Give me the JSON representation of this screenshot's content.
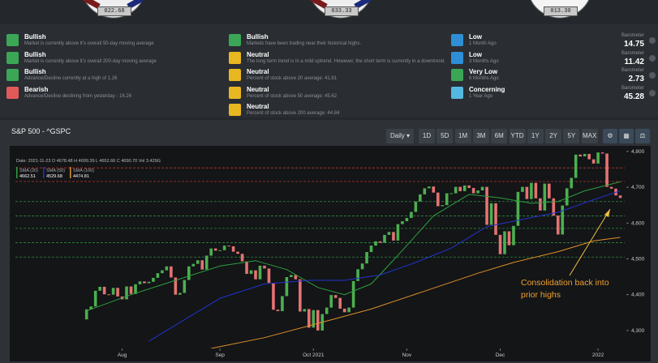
{
  "gauges": [
    "022.68",
    "033.33",
    "013.30"
  ],
  "indicators": [
    [
      {
        "title": "Bullish",
        "text": "Market is currently above it's overall 50-day moving average",
        "tone": "green"
      },
      {
        "title": "Bullish",
        "text": "Market is currently above it's overall 200-day moving average",
        "tone": "green"
      },
      {
        "title": "Bullish",
        "text": "Advance/Decline currently at a high of 1.26",
        "tone": "green"
      },
      {
        "title": "Bearish",
        "text": "Advance/Decline declining from yesterday - 16.26",
        "tone": "red"
      }
    ],
    [
      {
        "title": "Bullish",
        "text": "Markets have been trading near their historical highs.",
        "tone": "green"
      },
      {
        "title": "Neutral",
        "text": "The long term trend is in a mild uptrend. However, the short term is currently in a downtrend.",
        "tone": "yellow"
      },
      {
        "title": "Neutral",
        "text": "Percent of stock above 20 average: 41.81",
        "tone": "yellow"
      },
      {
        "title": "Neutral",
        "text": "Percent of stock above 50 average: 45.62",
        "tone": "yellow"
      },
      {
        "title": "Neutral",
        "text": "Percent of stock above 200 average: 44.84",
        "tone": "yellow"
      }
    ],
    [
      {
        "title": "Low",
        "text": "1 Month Ago",
        "tone": "blue",
        "meter": "Barometer",
        "value": "14.75"
      },
      {
        "title": "Low",
        "text": "3 Months Ago",
        "tone": "blue",
        "meter": "Barometer",
        "value": "11.42"
      },
      {
        "title": "Very Low",
        "text": "6 Months Ago",
        "tone": "green",
        "meter": "Barometer",
        "value": "2.73"
      },
      {
        "title": "Concerning",
        "text": "1 Year Ago",
        "tone": "sky",
        "meter": "Barometer",
        "value": "45.28"
      }
    ]
  ],
  "panel_title": "S&P 500 - ^GSPC",
  "interval": "Daily ▾",
  "ranges": [
    "1D",
    "5D",
    "1M",
    "3M",
    "6M",
    "YTD",
    "1Y",
    "2Y",
    "5Y",
    "MAX"
  ],
  "chart_data": {
    "type": "candlestick",
    "crosshair_info": "Date: 2021-11-23 O 4678.48 H 4699.39 L 4652.66 C 4690.70 Vol 3.429G",
    "x": [
      0,
      1,
      2,
      3,
      4,
      5,
      6,
      7,
      8,
      9,
      10,
      11,
      12,
      13,
      14,
      15,
      16,
      17,
      18,
      19,
      20,
      21,
      22,
      23,
      24,
      25,
      26,
      27,
      28,
      29,
      30,
      31,
      32,
      33,
      34,
      35,
      36,
      37,
      38,
      39,
      40,
      41,
      42,
      43,
      44,
      45,
      46,
      47,
      48,
      49,
      50,
      51,
      52,
      53,
      54,
      55,
      56,
      57,
      58,
      59,
      60,
      61,
      62,
      63,
      64,
      65,
      66,
      67,
      68,
      69,
      70,
      71,
      72,
      73,
      74,
      75,
      76,
      77,
      78,
      79,
      80,
      81,
      82,
      83,
      84,
      85,
      86,
      87,
      88,
      89,
      90,
      91,
      92,
      93,
      94,
      95,
      96,
      97,
      98,
      99,
      100,
      101,
      102,
      103,
      104,
      105,
      106,
      107,
      108,
      109,
      110,
      111,
      112,
      113,
      114,
      115,
      116,
      117,
      118,
      119,
      120
    ],
    "open": [
      4331,
      4359,
      4367,
      4411,
      4422,
      4401,
      4400,
      4419,
      4395,
      4387,
      4423,
      4402,
      4429,
      4437,
      4432,
      4436,
      4447,
      4460,
      4468,
      4479,
      4448,
      4400,
      4405,
      4441,
      4479,
      4486,
      4496,
      4470,
      4509,
      4529,
      4523,
      4524,
      4537,
      4535,
      4520,
      4514,
      4493,
      4458,
      4468,
      4443,
      4481,
      4473,
      4433,
      4358,
      4354,
      4396,
      4449,
      4455,
      4443,
      4353,
      4360,
      4308,
      4357,
      4300,
      4346,
      4364,
      4399,
      4391,
      4361,
      4351,
      4364,
      4438,
      4471,
      4487,
      4519,
      4537,
      4549,
      4545,
      4567,
      4575,
      4551,
      4597,
      4605,
      4614,
      4631,
      4660,
      4680,
      4697,
      4702,
      4685,
      4647,
      4650,
      4683,
      4683,
      4701,
      4689,
      4705,
      4698,
      4683,
      4691,
      4701,
      4595,
      4655,
      4567,
      4513,
      4577,
      4538,
      4592,
      4687,
      4701,
      4667,
      4712,
      4669,
      4635,
      4710,
      4669,
      4621,
      4568,
      4649,
      4697,
      4726,
      4791,
      4786,
      4793,
      4778,
      4766,
      4797,
      4794,
      4701,
      4696,
      4677
    ],
    "close": [
      4359,
      4367,
      4411,
      4422,
      4401,
      4400,
      4419,
      4395,
      4387,
      4423,
      4402,
      4429,
      4437,
      4432,
      4436,
      4447,
      4460,
      4468,
      4479,
      4448,
      4400,
      4405,
      4441,
      4479,
      4486,
      4496,
      4470,
      4509,
      4529,
      4523,
      4524,
      4537,
      4535,
      4520,
      4514,
      4493,
      4458,
      4468,
      4443,
      4481,
      4473,
      4433,
      4358,
      4354,
      4396,
      4449,
      4455,
      4443,
      4353,
      4360,
      4308,
      4357,
      4300,
      4346,
      4364,
      4399,
      4391,
      4361,
      4351,
      4364,
      4438,
      4471,
      4487,
      4519,
      4537,
      4549,
      4545,
      4567,
      4575,
      4551,
      4597,
      4605,
      4614,
      4631,
      4660,
      4680,
      4697,
      4702,
      4685,
      4647,
      4650,
      4683,
      4683,
      4701,
      4689,
      4705,
      4698,
      4683,
      4691,
      4701,
      4595,
      4655,
      4567,
      4513,
      4577,
      4538,
      4592,
      4687,
      4701,
      4667,
      4712,
      4669,
      4635,
      4710,
      4669,
      4621,
      4568,
      4649,
      4697,
      4726,
      4791,
      4786,
      4793,
      4778,
      4766,
      4797,
      4794,
      4701,
      4696,
      4677,
      4670
    ],
    "up_color": "#4caf50",
    "down_color": "#e57373",
    "series": [
      {
        "name": "SMA (20)",
        "legend_value": "4662.51",
        "color": "#2e9e3e",
        "x": [
          0,
          10,
          20,
          30,
          38,
          45,
          52,
          58,
          64,
          70,
          78,
          86,
          93,
          100,
          106,
          112,
          120
        ],
        "values": [
          4355,
          4400,
          4440,
          4480,
          4495,
          4470,
          4420,
          4400,
          4430,
          4510,
          4620,
          4680,
          4670,
          4655,
          4660,
          4690,
          4715
        ]
      },
      {
        "name": "SMA (50)",
        "legend_value": "4529.68",
        "color": "#2233cc",
        "x": [
          14,
          22,
          30,
          40,
          50,
          58,
          66,
          74,
          82,
          90,
          98,
          106,
          114,
          120
        ],
        "values": [
          4270,
          4330,
          4390,
          4430,
          4440,
          4440,
          4455,
          4490,
          4530,
          4590,
          4610,
          4630,
          4665,
          4690
        ]
      },
      {
        "name": "SMA (100)",
        "legend_value": "4474.81",
        "color": "#e0902a",
        "x": [
          28,
          40,
          52,
          64,
          76,
          88,
          96,
          106,
          114,
          120
        ],
        "values": [
          4250,
          4280,
          4320,
          4360,
          4410,
          4460,
          4490,
          4520,
          4550,
          4560
        ]
      }
    ],
    "levels": [
      {
        "value": 4754,
        "color": "#c03030"
      },
      {
        "value": 4716,
        "color": "#c03030"
      },
      {
        "value": 4660,
        "color": "#2e8b3e"
      },
      {
        "value": 4620,
        "color": "#2e8b3e"
      },
      {
        "value": 4585,
        "color": "#2e8b3e"
      },
      {
        "value": 4545,
        "color": "#2e8b3e"
      },
      {
        "value": 4505,
        "color": "#2e8b3e"
      }
    ],
    "xlim": [
      -16,
      121
    ],
    "ylim": [
      4250,
      4820
    ],
    "xticks": [
      {
        "value": 8,
        "label": "Aug"
      },
      {
        "value": 30,
        "label": "Sep"
      },
      {
        "value": 51,
        "label": "Oct 2021"
      },
      {
        "value": 72,
        "label": "Nov"
      },
      {
        "value": 93,
        "label": "Dec"
      },
      {
        "value": 115,
        "label": "2022"
      }
    ],
    "yticks": [
      {
        "value": 4300,
        "label": "4,300"
      },
      {
        "value": 4400,
        "label": "4,400"
      },
      {
        "value": 4500,
        "label": "4,500"
      },
      {
        "value": 4600,
        "label": "4,600"
      },
      {
        "value": 4700,
        "label": "4,700"
      },
      {
        "value": 4800,
        "label": "4,800"
      }
    ],
    "annotation": [
      "Consolidation back into",
      "prior highs"
    ]
  }
}
